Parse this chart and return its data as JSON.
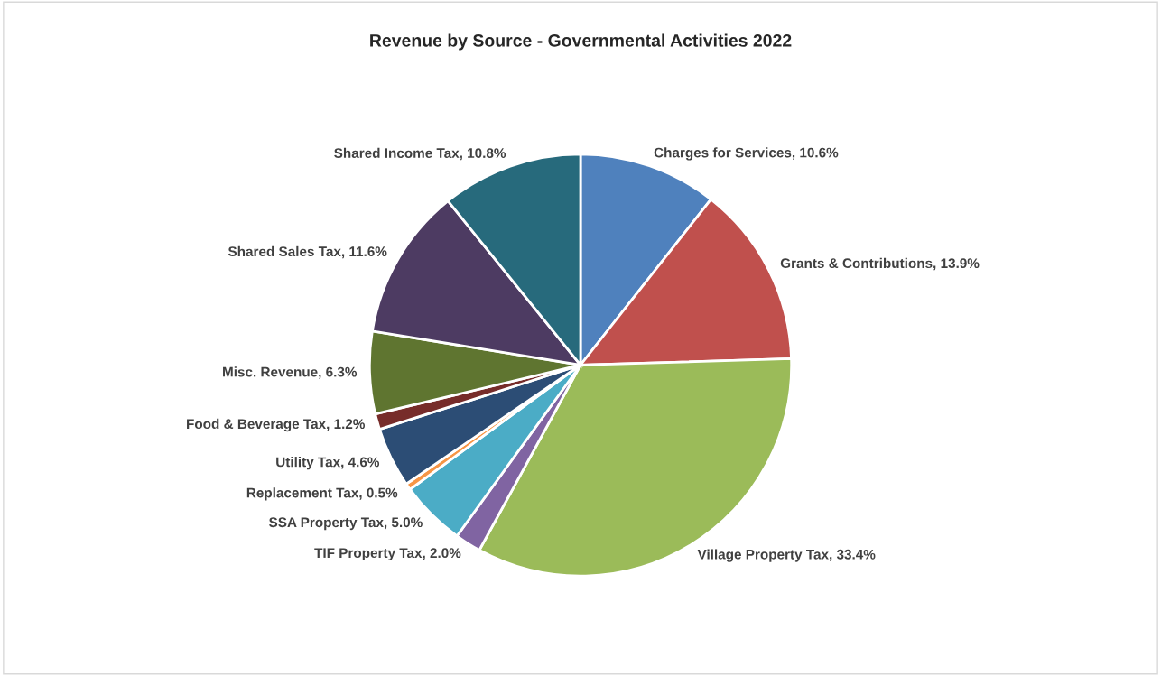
{
  "chart_data": {
    "type": "pie",
    "title": "Revenue by Source - Governmental Activities 2022",
    "categories": [
      "Charges for Services",
      "Grants & Contributions",
      "Village Property Tax",
      "TIF Property Tax",
      "SSA Property Tax",
      "Replacement Tax",
      "Utility Tax",
      "Food & Beverage Tax",
      "Misc. Revenue",
      "Shared Sales Tax",
      "Shared Income Tax"
    ],
    "values": [
      10.6,
      13.9,
      33.4,
      2.0,
      5.0,
      0.5,
      4.6,
      1.2,
      6.3,
      11.6,
      10.8
    ],
    "value_labels": [
      "10.6%",
      "13.9%",
      "33.4%",
      "2.0%",
      "5.0%",
      "0.5%",
      "4.6%",
      "1.2%",
      "6.3%",
      "11.6%",
      "10.8%"
    ],
    "colors": [
      "#4f81bd",
      "#c0504d",
      "#9bbb59",
      "#8064a2",
      "#4bacc6",
      "#f79646",
      "#2c4d75",
      "#772c2a",
      "#5f7530",
      "#4d3b62",
      "#276a7c"
    ],
    "legend": false
  }
}
